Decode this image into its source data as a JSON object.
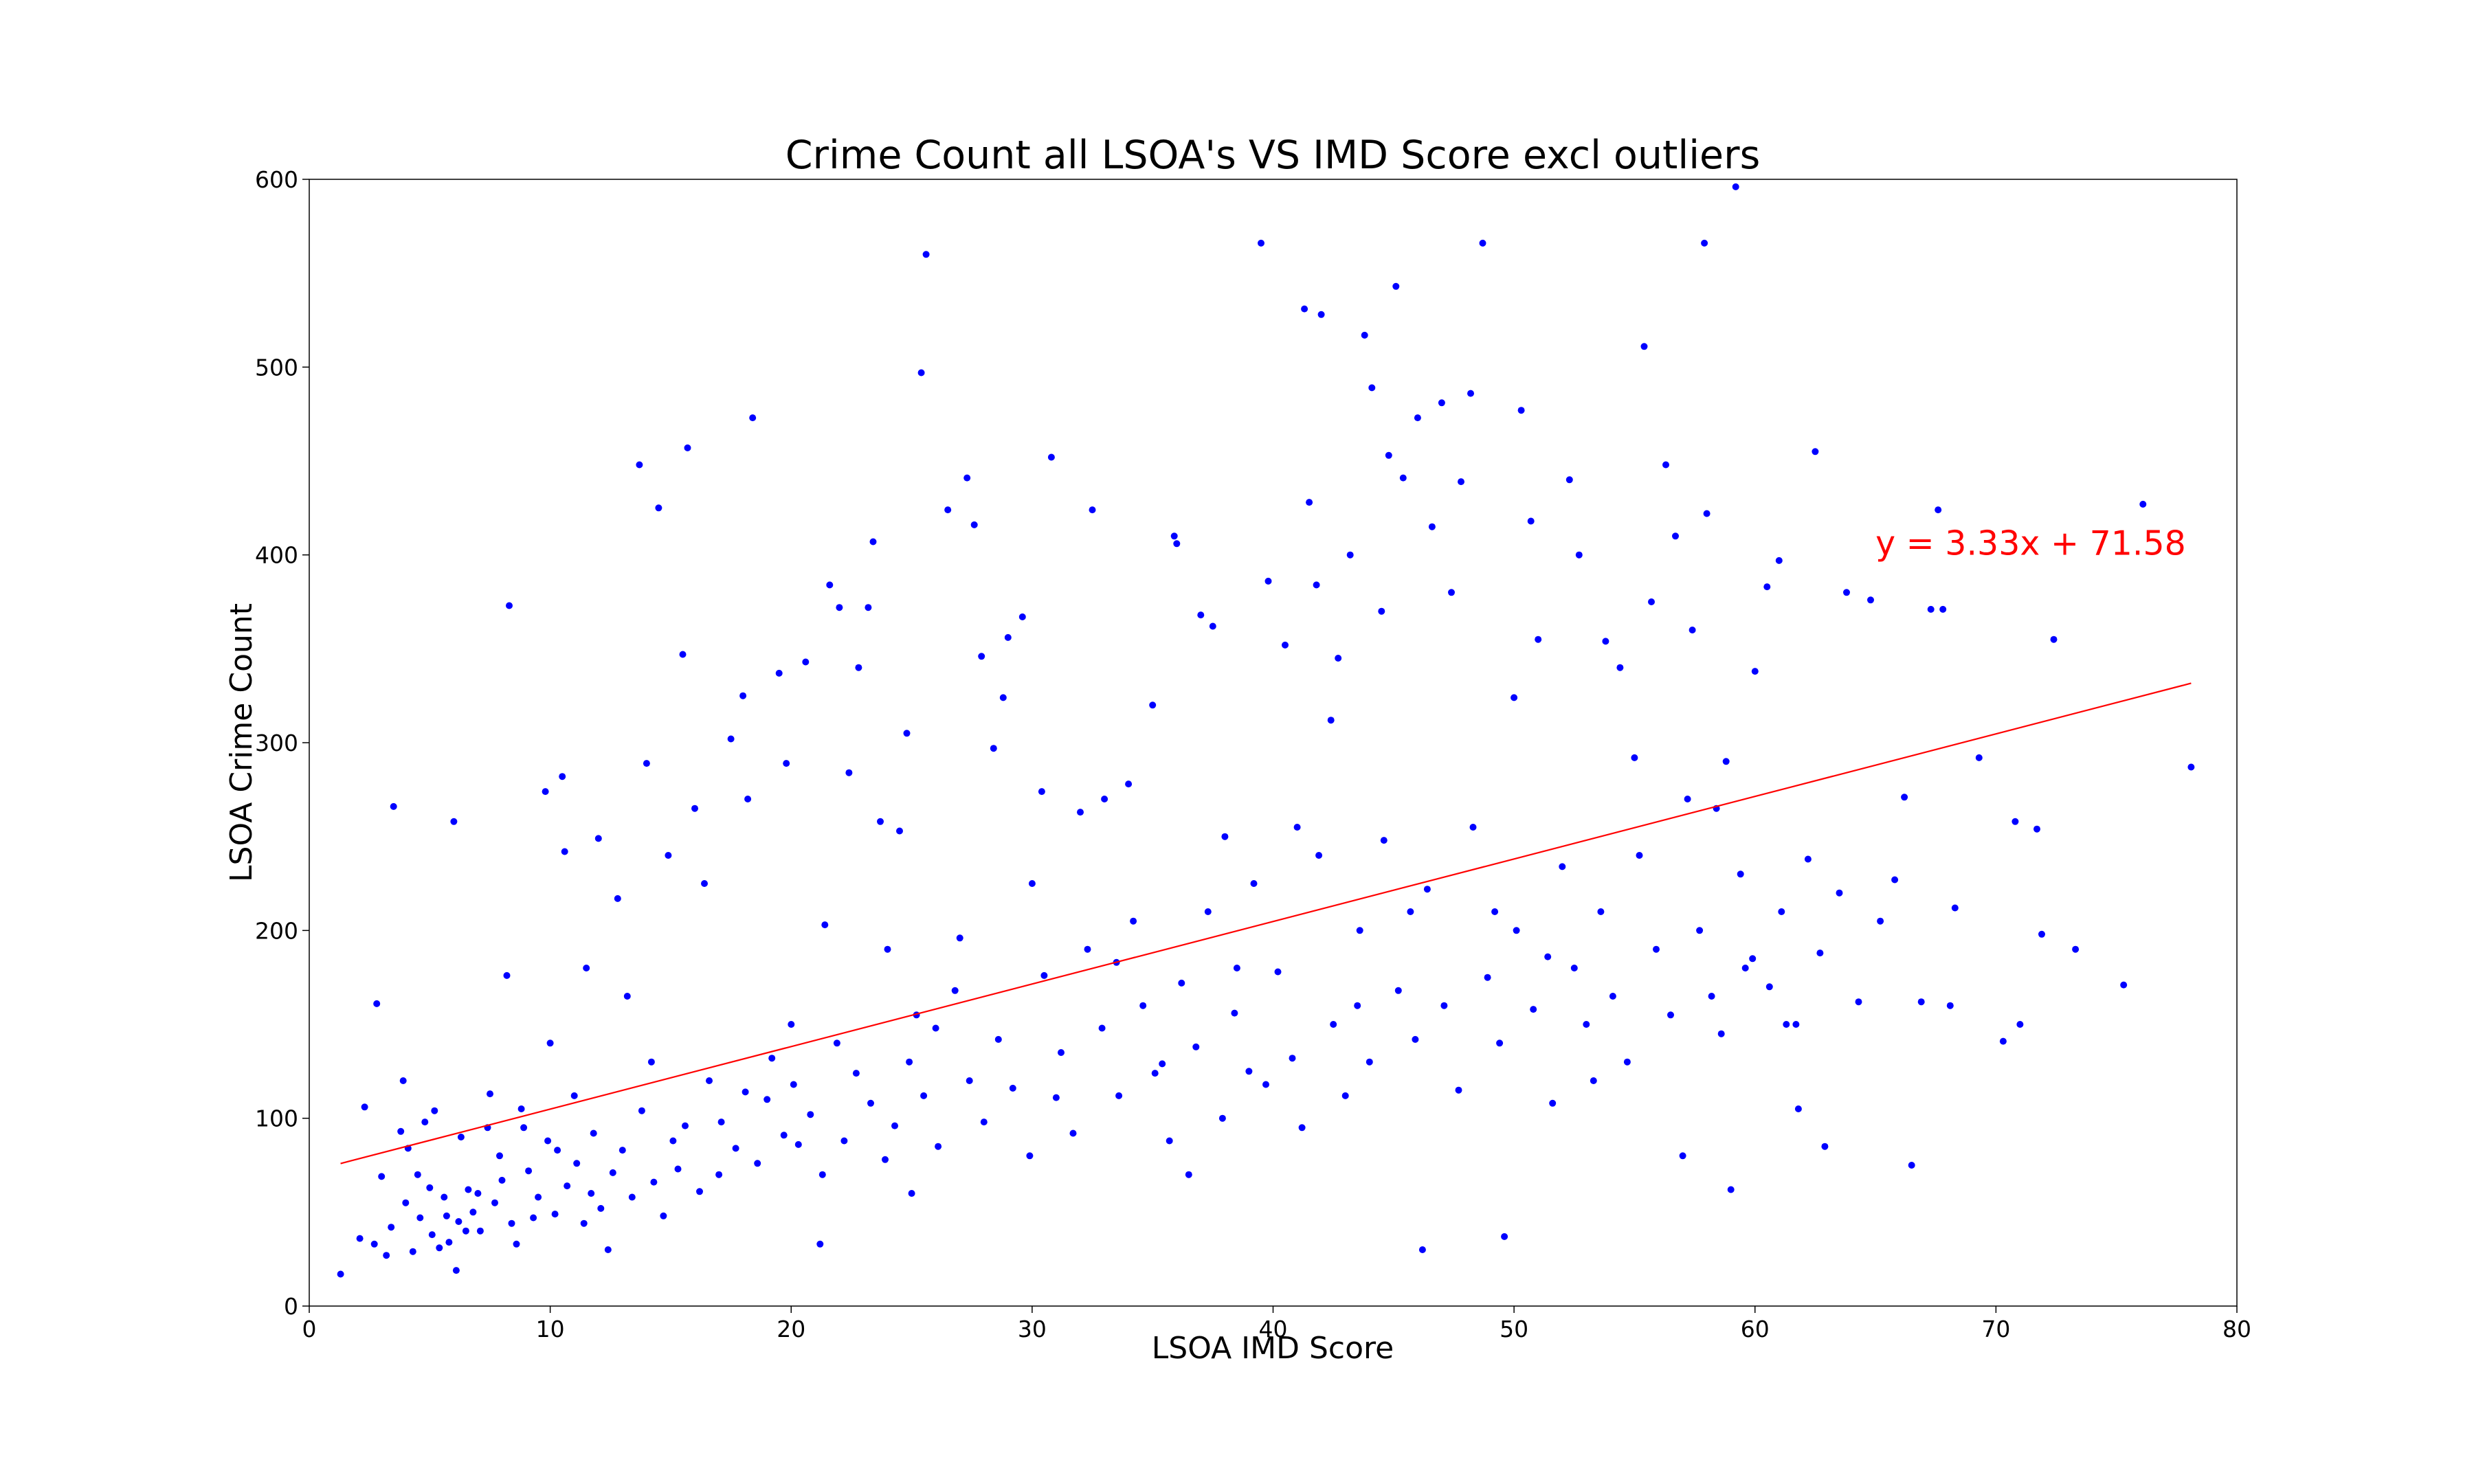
{
  "chart_data": {
    "type": "scatter",
    "title": "Crime Count all LSOA's VS IMD Score excl outliers",
    "xlabel": "LSOA IMD Score",
    "ylabel": "LSOA Crime Count",
    "xlim": [
      0,
      80
    ],
    "ylim": [
      0,
      600
    ],
    "x_ticks": [
      0,
      10,
      20,
      30,
      40,
      50,
      60,
      70,
      80
    ],
    "y_ticks": [
      0,
      100,
      200,
      300,
      400,
      500,
      600
    ],
    "grid": false,
    "point_color": "#0000ff",
    "points": [
      [
        1.3,
        17
      ],
      [
        2.1,
        36
      ],
      [
        2.3,
        106
      ],
      [
        2.7,
        33
      ],
      [
        2.8,
        161
      ],
      [
        3.0,
        69
      ],
      [
        3.2,
        27
      ],
      [
        3.5,
        266
      ],
      [
        3.8,
        93
      ],
      [
        3.9,
        120
      ],
      [
        4.1,
        84
      ],
      [
        4.3,
        29
      ],
      [
        4.6,
        47
      ],
      [
        4.8,
        98
      ],
      [
        5.0,
        63
      ],
      [
        5.2,
        104
      ],
      [
        5.4,
        31
      ],
      [
        5.6,
        58
      ],
      [
        5.8,
        34
      ],
      [
        6.0,
        258
      ],
      [
        6.1,
        19
      ],
      [
        6.3,
        90
      ],
      [
        6.5,
        40
      ],
      [
        6.8,
        50
      ],
      [
        7.0,
        60
      ],
      [
        7.5,
        113
      ],
      [
        7.9,
        80
      ],
      [
        8.2,
        176
      ],
      [
        8.3,
        373
      ],
      [
        8.6,
        33
      ],
      [
        8.9,
        95
      ],
      [
        9.3,
        47
      ],
      [
        9.8,
        274
      ],
      [
        10.0,
        140
      ],
      [
        10.3,
        83
      ],
      [
        10.5,
        282
      ],
      [
        10.6,
        242
      ],
      [
        11.0,
        112
      ],
      [
        11.5,
        180
      ],
      [
        11.7,
        60
      ],
      [
        12.0,
        249
      ],
      [
        12.4,
        30
      ],
      [
        12.8,
        217
      ],
      [
        13.2,
        165
      ],
      [
        13.7,
        448
      ],
      [
        14.0,
        289
      ],
      [
        14.2,
        130
      ],
      [
        14.5,
        425
      ],
      [
        14.9,
        240
      ],
      [
        15.3,
        73
      ],
      [
        15.5,
        347
      ],
      [
        15.7,
        457
      ],
      [
        16.0,
        265
      ],
      [
        16.4,
        225
      ],
      [
        17.0,
        70
      ],
      [
        17.5,
        302
      ],
      [
        18.0,
        325
      ],
      [
        18.2,
        270
      ],
      [
        18.4,
        473
      ],
      [
        19.0,
        110
      ],
      [
        19.5,
        337
      ],
      [
        19.8,
        289
      ],
      [
        20.0,
        150
      ],
      [
        20.3,
        86
      ],
      [
        20.6,
        343
      ],
      [
        21.2,
        33
      ],
      [
        21.4,
        203
      ],
      [
        21.6,
        384
      ],
      [
        22.0,
        372
      ],
      [
        22.4,
        284
      ],
      [
        22.8,
        340
      ],
      [
        23.2,
        372
      ],
      [
        23.4,
        407
      ],
      [
        23.7,
        258
      ],
      [
        24.0,
        190
      ],
      [
        24.5,
        253
      ],
      [
        24.8,
        305
      ],
      [
        25.0,
        60
      ],
      [
        25.2,
        155
      ],
      [
        25.4,
        497
      ],
      [
        25.6,
        560
      ],
      [
        26.0,
        148
      ],
      [
        26.5,
        424
      ],
      [
        27.0,
        196
      ],
      [
        27.3,
        441
      ],
      [
        27.6,
        416
      ],
      [
        27.9,
        346
      ],
      [
        28.4,
        297
      ],
      [
        28.8,
        324
      ],
      [
        29.0,
        356
      ],
      [
        29.6,
        367
      ],
      [
        30.0,
        225
      ],
      [
        30.4,
        274
      ],
      [
        30.8,
        452
      ],
      [
        31.0,
        111
      ],
      [
        32.0,
        263
      ],
      [
        32.5,
        424
      ],
      [
        33.0,
        270
      ],
      [
        33.5,
        183
      ],
      [
        34.0,
        278
      ],
      [
        35.0,
        320
      ],
      [
        35.4,
        129
      ],
      [
        35.9,
        410
      ],
      [
        36.0,
        406
      ],
      [
        36.5,
        70
      ],
      [
        37.0,
        368
      ],
      [
        37.5,
        362
      ],
      [
        38.0,
        250
      ],
      [
        38.5,
        180
      ],
      [
        39.0,
        125
      ],
      [
        39.5,
        566
      ],
      [
        39.8,
        386
      ],
      [
        40.5,
        352
      ],
      [
        41.0,
        255
      ],
      [
        41.3,
        531
      ],
      [
        41.5,
        428
      ],
      [
        41.8,
        384
      ],
      [
        42.0,
        528
      ],
      [
        42.4,
        312
      ],
      [
        42.7,
        345
      ],
      [
        43.2,
        400
      ],
      [
        43.5,
        160
      ],
      [
        43.8,
        517
      ],
      [
        44.1,
        489
      ],
      [
        44.5,
        370
      ],
      [
        44.8,
        453
      ],
      [
        45.1,
        543
      ],
      [
        45.4,
        441
      ],
      [
        45.7,
        210
      ],
      [
        46.0,
        473
      ],
      [
        46.2,
        30
      ],
      [
        46.6,
        415
      ],
      [
        47.0,
        481
      ],
      [
        47.4,
        380
      ],
      [
        47.8,
        439
      ],
      [
        48.2,
        486
      ],
      [
        48.7,
        566
      ],
      [
        49.2,
        210
      ],
      [
        49.6,
        37
      ],
      [
        50.0,
        324
      ],
      [
        50.3,
        477
      ],
      [
        50.7,
        418
      ],
      [
        51.0,
        355
      ],
      [
        51.4,
        186
      ],
      [
        52.0,
        234
      ],
      [
        52.3,
        440
      ],
      [
        52.7,
        400
      ],
      [
        53.3,
        120
      ],
      [
        53.8,
        354
      ],
      [
        54.4,
        340
      ],
      [
        55.0,
        292
      ],
      [
        55.4,
        511
      ],
      [
        55.7,
        375
      ],
      [
        56.3,
        448
      ],
      [
        56.7,
        410
      ],
      [
        57.0,
        80
      ],
      [
        57.4,
        360
      ],
      [
        57.9,
        566
      ],
      [
        58.0,
        422
      ],
      [
        58.4,
        265
      ],
      [
        58.8,
        290
      ],
      [
        59.0,
        62
      ],
      [
        59.2,
        596
      ],
      [
        59.6,
        180
      ],
      [
        60.0,
        338
      ],
      [
        60.5,
        383
      ],
      [
        61.0,
        397
      ],
      [
        61.3,
        150
      ],
      [
        61.8,
        105
      ],
      [
        62.5,
        455
      ],
      [
        62.9,
        85
      ],
      [
        63.5,
        220
      ],
      [
        63.8,
        380
      ],
      [
        64.3,
        162
      ],
      [
        64.8,
        376
      ],
      [
        65.2,
        205
      ],
      [
        65.8,
        227
      ],
      [
        66.2,
        271
      ],
      [
        66.5,
        75
      ],
      [
        66.9,
        162
      ],
      [
        67.3,
        371
      ],
      [
        67.6,
        424
      ],
      [
        67.8,
        371
      ],
      [
        68.1,
        160
      ],
      [
        68.3,
        212
      ],
      [
        69.3,
        292
      ],
      [
        70.3,
        141
      ],
      [
        70.8,
        258
      ],
      [
        71.0,
        150
      ],
      [
        71.7,
        254
      ],
      [
        71.9,
        198
      ],
      [
        72.4,
        355
      ],
      [
        73.3,
        190
      ],
      [
        75.3,
        171
      ],
      [
        76.1,
        427
      ],
      [
        78.1,
        287
      ],
      [
        3.4,
        42
      ],
      [
        4.0,
        55
      ],
      [
        4.5,
        70
      ],
      [
        5.1,
        38
      ],
      [
        5.7,
        48
      ],
      [
        6.2,
        45
      ],
      [
        6.6,
        62
      ],
      [
        7.1,
        40
      ],
      [
        7.4,
        95
      ],
      [
        7.7,
        55
      ],
      [
        8.0,
        67
      ],
      [
        8.4,
        44
      ],
      [
        8.8,
        105
      ],
      [
        9.1,
        72
      ],
      [
        9.5,
        58
      ],
      [
        9.9,
        88
      ],
      [
        10.2,
        49
      ],
      [
        10.7,
        64
      ],
      [
        11.1,
        76
      ],
      [
        11.4,
        44
      ],
      [
        11.8,
        92
      ],
      [
        12.1,
        52
      ],
      [
        12.6,
        71
      ],
      [
        13.0,
        83
      ],
      [
        13.4,
        58
      ],
      [
        13.8,
        104
      ],
      [
        14.3,
        66
      ],
      [
        14.7,
        48
      ],
      [
        15.1,
        88
      ],
      [
        15.6,
        96
      ],
      [
        16.2,
        61
      ],
      [
        16.6,
        120
      ],
      [
        17.1,
        98
      ],
      [
        17.7,
        84
      ],
      [
        18.1,
        114
      ],
      [
        18.6,
        76
      ],
      [
        19.2,
        132
      ],
      [
        19.7,
        91
      ],
      [
        20.1,
        118
      ],
      [
        20.8,
        102
      ],
      [
        21.3,
        70
      ],
      [
        21.9,
        140
      ],
      [
        22.2,
        88
      ],
      [
        22.7,
        124
      ],
      [
        23.3,
        108
      ],
      [
        23.9,
        78
      ],
      [
        24.3,
        96
      ],
      [
        24.9,
        130
      ],
      [
        25.5,
        112
      ],
      [
        26.1,
        85
      ],
      [
        26.8,
        168
      ],
      [
        27.4,
        120
      ],
      [
        28.0,
        98
      ],
      [
        28.6,
        142
      ],
      [
        29.2,
        116
      ],
      [
        29.9,
        80
      ],
      [
        30.5,
        176
      ],
      [
        31.2,
        135
      ],
      [
        31.7,
        92
      ],
      [
        32.3,
        190
      ],
      [
        32.9,
        148
      ],
      [
        33.6,
        112
      ],
      [
        34.2,
        205
      ],
      [
        34.6,
        160
      ],
      [
        35.1,
        124
      ],
      [
        35.7,
        88
      ],
      [
        36.2,
        172
      ],
      [
        36.8,
        138
      ],
      [
        37.3,
        210
      ],
      [
        37.9,
        100
      ],
      [
        38.4,
        156
      ],
      [
        39.2,
        225
      ],
      [
        39.7,
        118
      ],
      [
        40.2,
        178
      ],
      [
        40.8,
        132
      ],
      [
        41.2,
        95
      ],
      [
        41.9,
        240
      ],
      [
        42.5,
        150
      ],
      [
        43.0,
        112
      ],
      [
        43.6,
        200
      ],
      [
        44.0,
        130
      ],
      [
        44.6,
        248
      ],
      [
        45.2,
        168
      ],
      [
        45.9,
        142
      ],
      [
        46.4,
        222
      ],
      [
        47.1,
        160
      ],
      [
        47.7,
        115
      ],
      [
        48.3,
        255
      ],
      [
        48.9,
        175
      ],
      [
        49.4,
        140
      ],
      [
        50.1,
        200
      ],
      [
        50.8,
        158
      ],
      [
        51.6,
        108
      ],
      [
        52.5,
        180
      ],
      [
        53.0,
        150
      ],
      [
        53.6,
        210
      ],
      [
        54.1,
        165
      ],
      [
        54.7,
        130
      ],
      [
        55.2,
        240
      ],
      [
        55.9,
        190
      ],
      [
        56.5,
        155
      ],
      [
        57.2,
        270
      ],
      [
        57.7,
        200
      ],
      [
        58.2,
        165
      ],
      [
        58.6,
        145
      ],
      [
        59.4,
        230
      ],
      [
        59.9,
        185
      ],
      [
        60.6,
        170
      ],
      [
        61.1,
        210
      ],
      [
        61.7,
        150
      ],
      [
        62.2,
        238
      ],
      [
        62.7,
        188
      ]
    ],
    "trendline": {
      "label": "y = 3.33x + 71.58",
      "slope": 3.33,
      "intercept": 71.58,
      "x_range": [
        1.3,
        78.1
      ],
      "color": "#ff0000"
    }
  }
}
